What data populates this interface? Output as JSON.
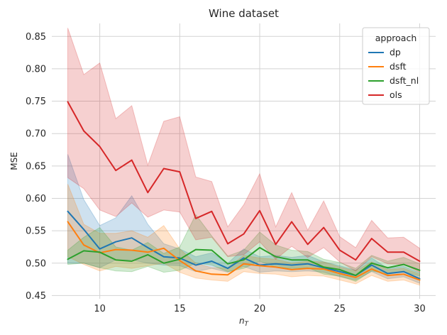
{
  "chart_data": {
    "type": "line",
    "title": "Wine dataset",
    "xlabel": "n",
    "xlabel_sub": "T",
    "ylabel": "MSE",
    "xlim": [
      7,
      31
    ],
    "ylim": [
      0.445,
      0.87
    ],
    "xticks": [
      10,
      15,
      20,
      25,
      30
    ],
    "yticks": [
      0.45,
      0.5,
      0.55,
      0.6,
      0.65,
      0.7,
      0.75,
      0.8,
      0.85
    ],
    "ytick_labels": [
      "0.45",
      "0.50",
      "0.55",
      "0.60",
      "0.65",
      "0.70",
      "0.75",
      "0.80",
      "0.85"
    ],
    "grid": true,
    "legend": {
      "title": "approach",
      "placement": "top-right"
    },
    "x": [
      8,
      9,
      10,
      11,
      12,
      13,
      14,
      15,
      16,
      17,
      18,
      19,
      20,
      21,
      22,
      23,
      24,
      25,
      26,
      27,
      28,
      29,
      30
    ],
    "series": [
      {
        "name": "dp",
        "color": "#1f77b4",
        "values": [
          0.58,
          0.552,
          0.522,
          0.533,
          0.539,
          0.524,
          0.51,
          0.508,
          0.497,
          0.503,
          0.492,
          0.508,
          0.497,
          0.499,
          0.497,
          0.499,
          0.493,
          0.487,
          0.481,
          0.497,
          0.484,
          0.487,
          0.476
        ],
        "lower": [
          0.5,
          0.5,
          0.493,
          0.505,
          0.505,
          0.5,
          0.497,
          0.496,
          0.487,
          0.492,
          0.486,
          0.495,
          0.486,
          0.488,
          0.487,
          0.488,
          0.486,
          0.479,
          0.474,
          0.487,
          0.476,
          0.479,
          0.469
        ],
        "upper": [
          0.668,
          0.598,
          0.558,
          0.57,
          0.604,
          0.56,
          0.53,
          0.522,
          0.51,
          0.516,
          0.5,
          0.522,
          0.51,
          0.512,
          0.509,
          0.512,
          0.502,
          0.496,
          0.489,
          0.508,
          0.492,
          0.495,
          0.485
        ]
      },
      {
        "name": "dsft",
        "color": "#ff7f0e",
        "values": [
          0.564,
          0.528,
          0.516,
          0.521,
          0.52,
          0.517,
          0.523,
          0.504,
          0.488,
          0.483,
          0.482,
          0.499,
          0.496,
          0.494,
          0.49,
          0.492,
          0.491,
          0.484,
          0.478,
          0.491,
          0.481,
          0.483,
          0.474
        ],
        "lower": [
          0.51,
          0.498,
          0.488,
          0.495,
          0.492,
          0.496,
          0.5,
          0.486,
          0.477,
          0.474,
          0.472,
          0.487,
          0.484,
          0.483,
          0.479,
          0.481,
          0.48,
          0.474,
          0.468,
          0.481,
          0.472,
          0.474,
          0.466
        ],
        "upper": [
          0.622,
          0.56,
          0.546,
          0.546,
          0.55,
          0.54,
          0.558,
          0.522,
          0.5,
          0.493,
          0.493,
          0.512,
          0.508,
          0.506,
          0.5,
          0.503,
          0.502,
          0.494,
          0.488,
          0.502,
          0.49,
          0.492,
          0.483
        ]
      },
      {
        "name": "dsft_nl",
        "color": "#2ca02c",
        "values": [
          0.506,
          0.519,
          0.517,
          0.505,
          0.503,
          0.513,
          0.5,
          0.506,
          0.521,
          0.52,
          0.499,
          0.505,
          0.524,
          0.51,
          0.505,
          0.505,
          0.494,
          0.49,
          0.481,
          0.5,
          0.493,
          0.498,
          0.489
        ],
        "lower": [
          0.498,
          0.5,
          0.493,
          0.488,
          0.487,
          0.495,
          0.486,
          0.489,
          0.5,
          0.497,
          0.487,
          0.492,
          0.503,
          0.494,
          0.492,
          0.493,
          0.483,
          0.48,
          0.472,
          0.488,
          0.483,
          0.487,
          0.48
        ],
        "upper": [
          0.52,
          0.54,
          0.555,
          0.525,
          0.52,
          0.532,
          0.515,
          0.525,
          0.575,
          0.542,
          0.511,
          0.52,
          0.548,
          0.528,
          0.52,
          0.518,
          0.506,
          0.501,
          0.492,
          0.512,
          0.503,
          0.509,
          0.499
        ]
      },
      {
        "name": "ols",
        "color": "#d62728",
        "values": [
          0.749,
          0.704,
          0.68,
          0.643,
          0.659,
          0.609,
          0.646,
          0.641,
          0.569,
          0.58,
          0.53,
          0.545,
          0.581,
          0.529,
          0.564,
          0.529,
          0.555,
          0.52,
          0.505,
          0.538,
          0.517,
          0.517,
          0.503
        ],
        "lower": [
          0.632,
          0.615,
          0.582,
          0.572,
          0.593,
          0.571,
          0.582,
          0.579,
          0.536,
          0.54,
          0.51,
          0.513,
          0.533,
          0.506,
          0.526,
          0.509,
          0.524,
          0.502,
          0.488,
          0.51,
          0.499,
          0.498,
          0.486
        ],
        "upper": [
          0.863,
          0.791,
          0.809,
          0.723,
          0.743,
          0.651,
          0.719,
          0.726,
          0.633,
          0.626,
          0.556,
          0.59,
          0.638,
          0.556,
          0.609,
          0.551,
          0.596,
          0.541,
          0.524,
          0.566,
          0.539,
          0.54,
          0.523
        ]
      }
    ]
  }
}
